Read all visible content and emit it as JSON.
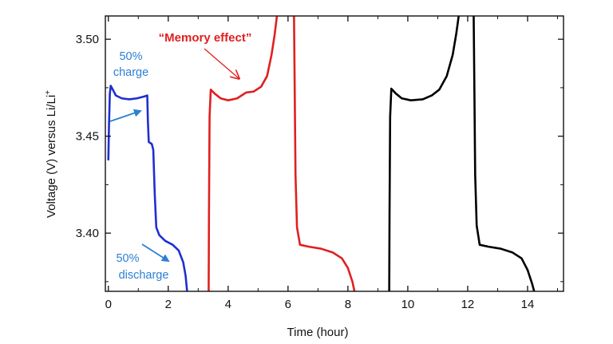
{
  "colors": {
    "blue": "#1f2fd0",
    "blue_annotation": "#2b7fd4",
    "red": "#e02020",
    "black": "#000000"
  },
  "chart_data": {
    "type": "line",
    "xlabel": "Time (hour)",
    "ylabel": "Voltage (V) versus Li/Li",
    "ylabel_superscript": "+",
    "xlim": [
      -0.1,
      15.2
    ],
    "ylim": [
      3.37,
      3.512
    ],
    "x_ticks": [
      0,
      2,
      4,
      6,
      8,
      10,
      12,
      14
    ],
    "y_ticks": [
      3.4,
      3.45,
      3.5
    ],
    "x_tick_labels": [
      "0",
      "2",
      "4",
      "6",
      "8",
      "10",
      "12",
      "14"
    ],
    "y_tick_labels": [
      "3.40",
      "3.45",
      "3.50"
    ],
    "grid": false,
    "series": [
      {
        "color": "blue",
        "points": [
          [
            0.0,
            3.438
          ],
          [
            0.02,
            3.455
          ],
          [
            0.05,
            3.472
          ],
          [
            0.08,
            3.476
          ],
          [
            0.15,
            3.474
          ],
          [
            0.25,
            3.471
          ],
          [
            0.45,
            3.4695
          ],
          [
            0.7,
            3.469
          ],
          [
            0.95,
            3.4695
          ],
          [
            1.2,
            3.4705
          ],
          [
            1.3,
            3.471
          ],
          [
            1.32,
            3.458
          ],
          [
            1.35,
            3.447
          ],
          [
            1.45,
            3.446
          ],
          [
            1.5,
            3.443
          ],
          [
            1.55,
            3.42
          ],
          [
            1.6,
            3.403
          ],
          [
            1.7,
            3.399
          ],
          [
            1.9,
            3.396
          ],
          [
            2.15,
            3.394
          ],
          [
            2.35,
            3.391
          ],
          [
            2.5,
            3.385
          ],
          [
            2.58,
            3.378
          ],
          [
            2.63,
            3.37
          ]
        ]
      },
      {
        "color": "red",
        "points": [
          [
            3.35,
            3.37
          ],
          [
            3.36,
            3.41
          ],
          [
            3.38,
            3.46
          ],
          [
            3.42,
            3.474
          ],
          [
            3.55,
            3.472
          ],
          [
            3.75,
            3.4695
          ],
          [
            4.0,
            3.4685
          ],
          [
            4.3,
            3.4695
          ],
          [
            4.5,
            3.4715
          ],
          [
            4.6,
            3.4725
          ],
          [
            4.85,
            3.473
          ],
          [
            5.1,
            3.4755
          ],
          [
            5.3,
            3.481
          ],
          [
            5.45,
            3.492
          ],
          [
            5.55,
            3.502
          ],
          [
            5.63,
            3.512
          ]
        ]
      },
      {
        "color": "red",
        "points": [
          [
            6.2,
            3.512
          ],
          [
            6.22,
            3.48
          ],
          [
            6.25,
            3.43
          ],
          [
            6.3,
            3.403
          ],
          [
            6.4,
            3.394
          ],
          [
            6.7,
            3.393
          ],
          [
            7.1,
            3.392
          ],
          [
            7.5,
            3.39
          ],
          [
            7.8,
            3.387
          ],
          [
            8.0,
            3.382
          ],
          [
            8.15,
            3.375
          ],
          [
            8.22,
            3.37
          ]
        ]
      },
      {
        "color": "black",
        "points": [
          [
            9.38,
            3.37
          ],
          [
            9.39,
            3.41
          ],
          [
            9.41,
            3.46
          ],
          [
            9.45,
            3.4745
          ],
          [
            9.6,
            3.472
          ],
          [
            9.8,
            3.4695
          ],
          [
            10.1,
            3.4685
          ],
          [
            10.5,
            3.469
          ],
          [
            10.8,
            3.471
          ],
          [
            11.05,
            3.474
          ],
          [
            11.3,
            3.481
          ],
          [
            11.5,
            3.492
          ],
          [
            11.62,
            3.503
          ],
          [
            11.7,
            3.512
          ]
        ]
      },
      {
        "color": "black",
        "points": [
          [
            12.2,
            3.512
          ],
          [
            12.22,
            3.48
          ],
          [
            12.25,
            3.43
          ],
          [
            12.3,
            3.404
          ],
          [
            12.4,
            3.394
          ],
          [
            12.7,
            3.393
          ],
          [
            13.1,
            3.392
          ],
          [
            13.5,
            3.39
          ],
          [
            13.8,
            3.387
          ],
          [
            14.0,
            3.381
          ],
          [
            14.15,
            3.374
          ],
          [
            14.22,
            3.37
          ]
        ]
      }
    ],
    "annotations": [
      {
        "id": "charge",
        "lines": [
          "50%",
          "charge"
        ],
        "color": "blue_annotation"
      },
      {
        "id": "discharge",
        "lines": [
          "50%",
          "discharge"
        ],
        "color": "blue_annotation"
      },
      {
        "id": "memory",
        "text": "“Memory effect”",
        "color": "red"
      }
    ]
  }
}
